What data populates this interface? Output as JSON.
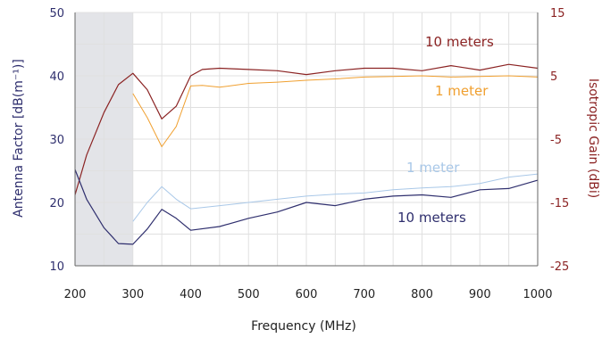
{
  "chart_data": {
    "type": "line",
    "xlabel": "Frequency (MHz)",
    "ylabel_left": "Antenna Factor [dB(m⁻¹)]",
    "ylabel_right": "Isotropic Gain (dBi)",
    "xlim": [
      200,
      1000
    ],
    "ylim_left": [
      10,
      50
    ],
    "ylim_right": [
      -25,
      15
    ],
    "xticks": [
      "200",
      "300",
      "400",
      "500",
      "600",
      "700",
      "800",
      "900",
      "1000"
    ],
    "yticks_left": [
      "10",
      "20",
      "30",
      "40",
      "50"
    ],
    "yticks_right": [
      "-25",
      "-15",
      "-5",
      "5",
      "15"
    ],
    "grid": true,
    "shaded_region": [
      200,
      300
    ],
    "colors": {
      "left_axis": "#2f2f6e",
      "right_axis": "#8b2323",
      "gain_10m": "#8b2323",
      "gain_1m": "#f0a030",
      "af_1m": "#a9c8e8",
      "af_10m": "#2f2f6e",
      "shade": "#e3e4e8",
      "grid": "#e0e0e0"
    },
    "series": [
      {
        "name": "10 meters",
        "axis": "right",
        "color_key": "gain_10m",
        "x": [
          200,
          220,
          250,
          275,
          300,
          325,
          350,
          375,
          400,
          420,
          450,
          500,
          550,
          600,
          650,
          700,
          750,
          800,
          850,
          900,
          950,
          1000
        ],
        "y": [
          -13.8,
          -7.5,
          -0.8,
          3.6,
          5.4,
          2.8,
          -1.8,
          0.2,
          5.0,
          6.0,
          6.2,
          6.0,
          5.8,
          5.2,
          5.8,
          6.2,
          6.2,
          5.8,
          6.6,
          5.9,
          6.8,
          6.2
        ]
      },
      {
        "name": "1 meter",
        "axis": "right",
        "color_key": "gain_1m",
        "x": [
          300,
          325,
          350,
          375,
          400,
          420,
          450,
          500,
          550,
          600,
          650,
          700,
          750,
          800,
          850,
          900,
          950,
          1000
        ],
        "y": [
          2.2,
          -1.6,
          -6.2,
          -3.0,
          3.4,
          3.5,
          3.2,
          3.8,
          4.0,
          4.3,
          4.5,
          4.8,
          4.9,
          5.0,
          4.8,
          4.9,
          5.0,
          4.8
        ]
      },
      {
        "name": "1 meter",
        "axis": "left",
        "color_key": "af_1m",
        "x": [
          300,
          325,
          350,
          375,
          400,
          450,
          500,
          550,
          600,
          650,
          700,
          750,
          800,
          850,
          900,
          950,
          1000
        ],
        "y": [
          17.0,
          20.0,
          22.5,
          20.5,
          19.0,
          19.5,
          20.0,
          20.5,
          21.0,
          21.3,
          21.5,
          22.0,
          22.3,
          22.5,
          23.0,
          24.0,
          24.5
        ]
      },
      {
        "name": "10 meters",
        "axis": "left",
        "color_key": "af_10m",
        "x": [
          200,
          220,
          250,
          275,
          300,
          325,
          350,
          375,
          400,
          450,
          500,
          550,
          600,
          650,
          700,
          750,
          800,
          850,
          900,
          950,
          1000
        ],
        "y": [
          25.2,
          20.5,
          16.0,
          13.5,
          13.4,
          15.8,
          18.9,
          17.5,
          15.6,
          16.2,
          17.5,
          18.5,
          20.0,
          19.5,
          20.5,
          21.0,
          21.2,
          20.8,
          22.0,
          22.2,
          23.5
        ]
      }
    ]
  }
}
